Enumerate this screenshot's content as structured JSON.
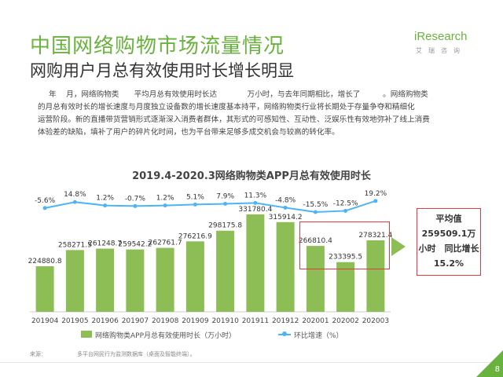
{
  "header": {
    "title": "中国网络购物市场流量情况",
    "subtitle": "网购用户月总有效使用时长增长明显"
  },
  "logo": {
    "brand": "iResearch",
    "tag": "艾瑞咨询"
  },
  "paragraph": {
    "line1": "年　 月，网络购物类　　平均月总有效使用时长达　　　　万小时，与去年同期相比，增长了　　　。网络购物类",
    "line2": "的月总有效时长的增长速度与月度独立设备数的增长速度基本持平，网络购物类行业将长期处于存量争夺和精细化",
    "line3": "运营阶段。新的直播带货营销形式逐渐深入消费者群体，其形式的可感知性、互动性、泛娱乐性有效地弥补了线上消费",
    "line4": "体验差的缺陷，填补了用户的碎片化时间，也为平台带来足够多成交机会与较高的转化率。"
  },
  "chart_data": {
    "type": "bar",
    "title": "2019.4-2020.3网络购物类APP月总有效使用时长",
    "categories": [
      "201904",
      "201905",
      "201906",
      "201907",
      "201908",
      "201909",
      "201910",
      "201911",
      "201912",
      "202001",
      "202002",
      "202003"
    ],
    "series": [
      {
        "name": "网络购物类APP月总有效使用时长（万小时）",
        "type": "bar",
        "color": "#8dbd55",
        "values": [
          224880.8,
          258271.5,
          261248.7,
          259542.2,
          262761.7,
          276216.9,
          298175.8,
          331780.4,
          315914.2,
          266810.4,
          233395.5,
          278321.4
        ]
      },
      {
        "name": "环比增速（%）",
        "type": "line",
        "color": "#4cb5f5",
        "values": [
          -5.6,
          14.8,
          1.2,
          -0.7,
          1.2,
          5.1,
          7.9,
          11.3,
          -4.8,
          -15.5,
          -12.5,
          19.2
        ],
        "labels": [
          "-5.6%",
          "14.8%",
          "1.2%",
          "-0.7%",
          "1.2%",
          "5.1%",
          "7.9%",
          "11.3%",
          "-4.8%",
          "-15.5%",
          "-12.5%",
          "19.2%"
        ]
      }
    ],
    "bar_labels": [
      "224880.8",
      "258271.5",
      "261248.7",
      "259542.2",
      "262761.7",
      "276216.9",
      "298175.8",
      "331780.4",
      "315914.2",
      "266810.4",
      "233395.5",
      "278321.4"
    ],
    "legend": "bottom",
    "grid": false
  },
  "callout": {
    "line1": "平均值",
    "line2": "259509.1万",
    "line3": "小时　同比增长",
    "line4": "15.2%"
  },
  "legend": {
    "bar_label": "网络购物类APP月总有效使用时长（万小时）",
    "line_label": "环比增速（%）"
  },
  "source": {
    "label": "来源：",
    "text": "多平台网民行为监测数据库（桌面及智能终端）。"
  },
  "page_number": "8"
}
